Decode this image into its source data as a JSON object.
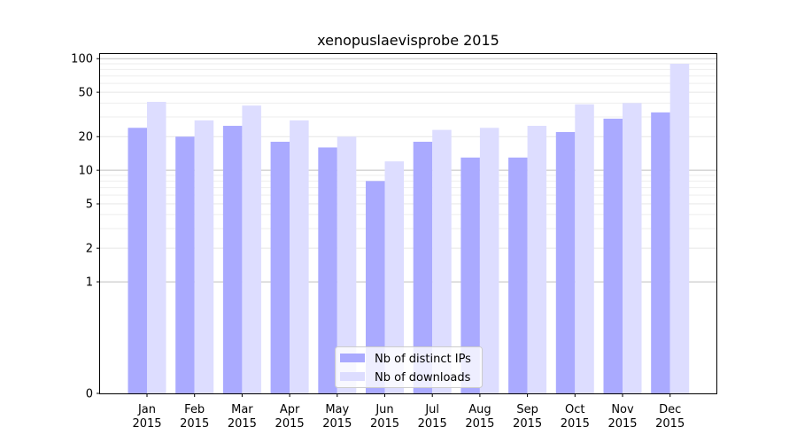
{
  "chart_data": {
    "type": "bar",
    "title": "xenopuslaevisprobe 2015",
    "xlabel": "",
    "ylabel": "",
    "yscale": "symlog",
    "ylim": [
      0,
      110
    ],
    "yticks": [
      0,
      1,
      2,
      5,
      10,
      20,
      50,
      100
    ],
    "grid": true,
    "legend_position": "lower center",
    "categories": [
      "Jan\n2015",
      "Feb\n2015",
      "Mar\n2015",
      "Apr\n2015",
      "May\n2015",
      "Jun\n2015",
      "Jul\n2015",
      "Aug\n2015",
      "Sep\n2015",
      "Oct\n2015",
      "Nov\n2015",
      "Dec\n2015"
    ],
    "series": [
      {
        "name": "Nb of distinct IPs",
        "color": "#aaaaff",
        "values": [
          24,
          20,
          25,
          18,
          16,
          8,
          18,
          13,
          13,
          22,
          29,
          33
        ]
      },
      {
        "name": "Nb of downloads",
        "color": "#ddddff",
        "values": [
          41,
          28,
          38,
          28,
          20,
          12,
          23,
          24,
          25,
          39,
          40,
          90
        ]
      }
    ]
  }
}
